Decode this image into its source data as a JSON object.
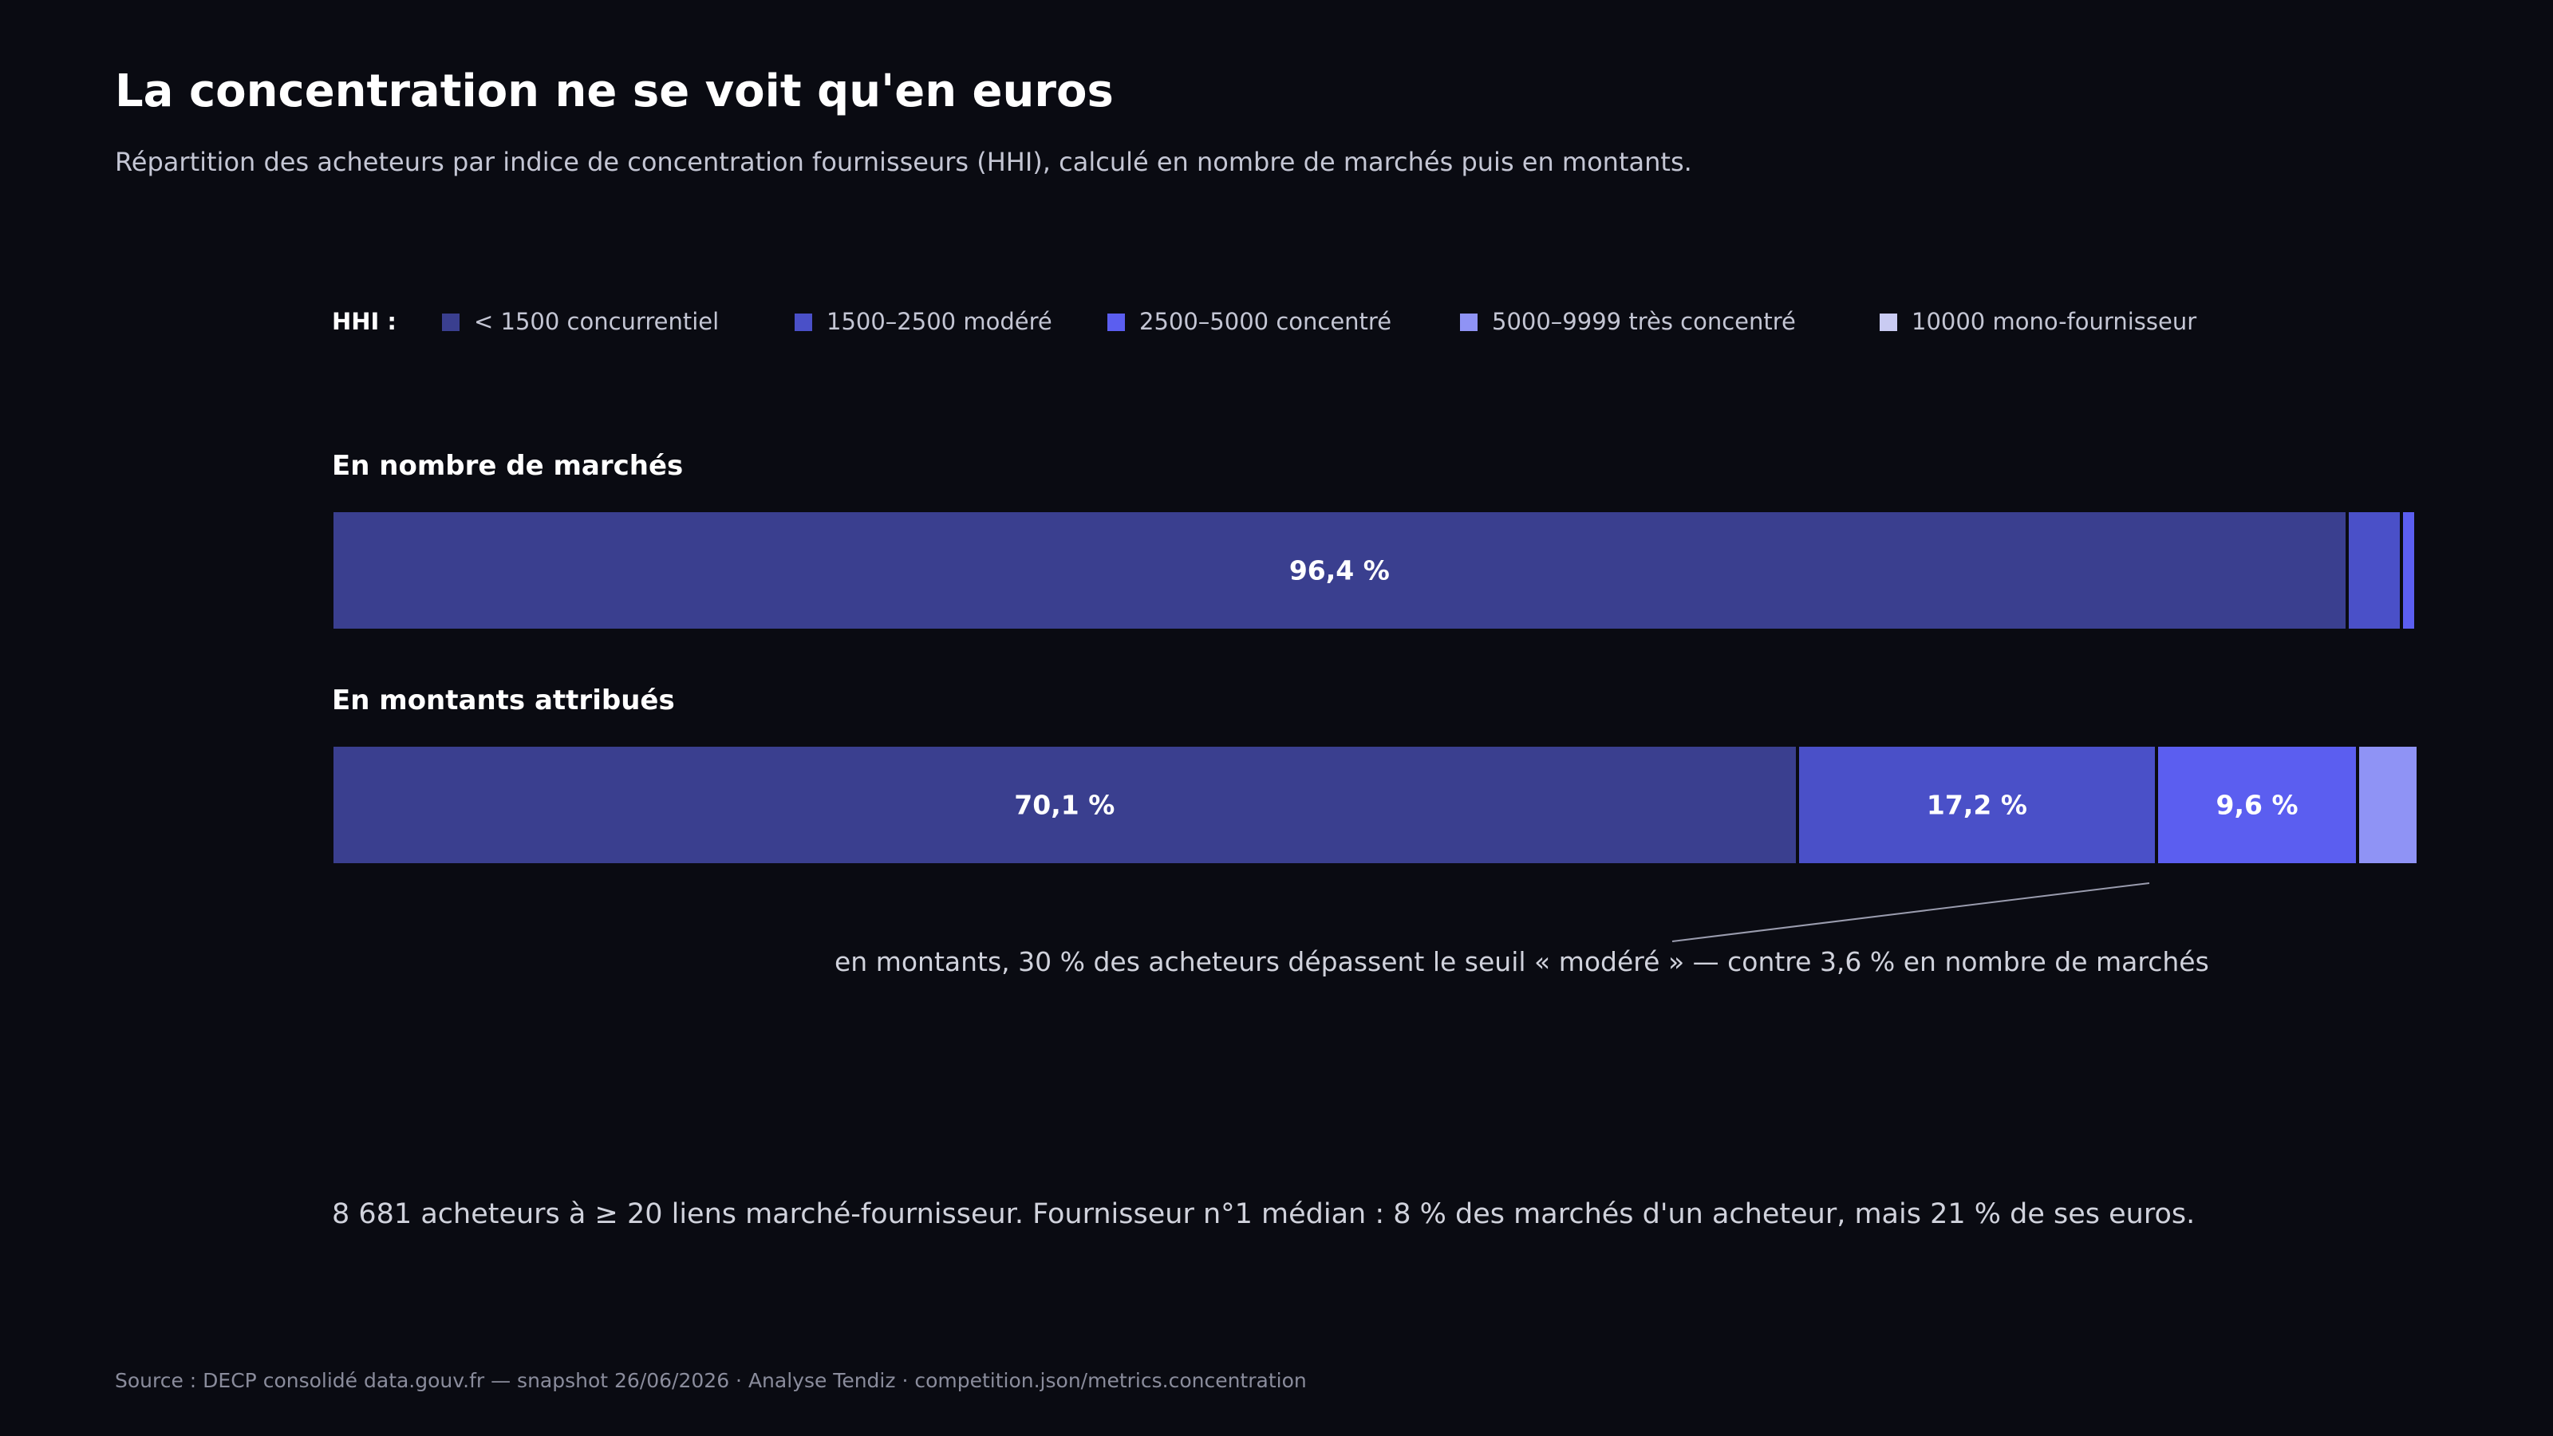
{
  "title": "La concentration ne se voit qu'en euros",
  "subtitle": "Répartition des acheteurs par indice de concentration fournisseurs (HHI), calculé en nombre de marchés puis en montants.",
  "legend": {
    "label": "HHI :",
    "items": [
      {
        "label": "< 1500 concurrentiel",
        "color": "#3a3f8f"
      },
      {
        "label": "1500–2500 modéré",
        "color": "#4a50c8"
      },
      {
        "label": "2500–5000 concentré",
        "color": "#5b5ef0"
      },
      {
        "label": "5000–9999 très concentré",
        "color": "#8f93f5"
      },
      {
        "label": "10000 mono-fournisseur",
        "color": "#c9cbf2"
      }
    ]
  },
  "chart_data": {
    "type": "bar",
    "orientation": "horizontal",
    "stacked": true,
    "normalized": "percent",
    "categories": [
      "< 1500 concurrentiel",
      "1500–2500 modéré",
      "2500–5000 concentré",
      "5000–9999 très concentré",
      "10000 mono-fournisseur"
    ],
    "rows": [
      {
        "name": "En nombre de marchés",
        "values": [
          96.4,
          2.6,
          0.7,
          0.2,
          0.1
        ],
        "labels": [
          "96,4 %",
          "",
          "",
          "",
          ""
        ]
      },
      {
        "name": "En montants attribués",
        "values": [
          70.1,
          17.2,
          9.6,
          2.9,
          0.2
        ],
        "labels": [
          "70,1 %",
          "17,2 %",
          "9,6 %",
          "",
          ""
        ]
      }
    ]
  },
  "annotation": "en montants, 30 % des acheteurs dépassent le seuil « modéré » — contre 3,6 % en nombre de marchés",
  "summary": "8 681 acheteurs à ≥ 20 liens marché-fournisseur. Fournisseur n°1 médian : 8 % des marchés d'un acheteur, mais 21 % de ses euros.",
  "footer": "Source : DECP consolidé data.gouv.fr — snapshot 26/06/2026 · Analyse Tendiz  ·  competition.json/metrics.concentration"
}
